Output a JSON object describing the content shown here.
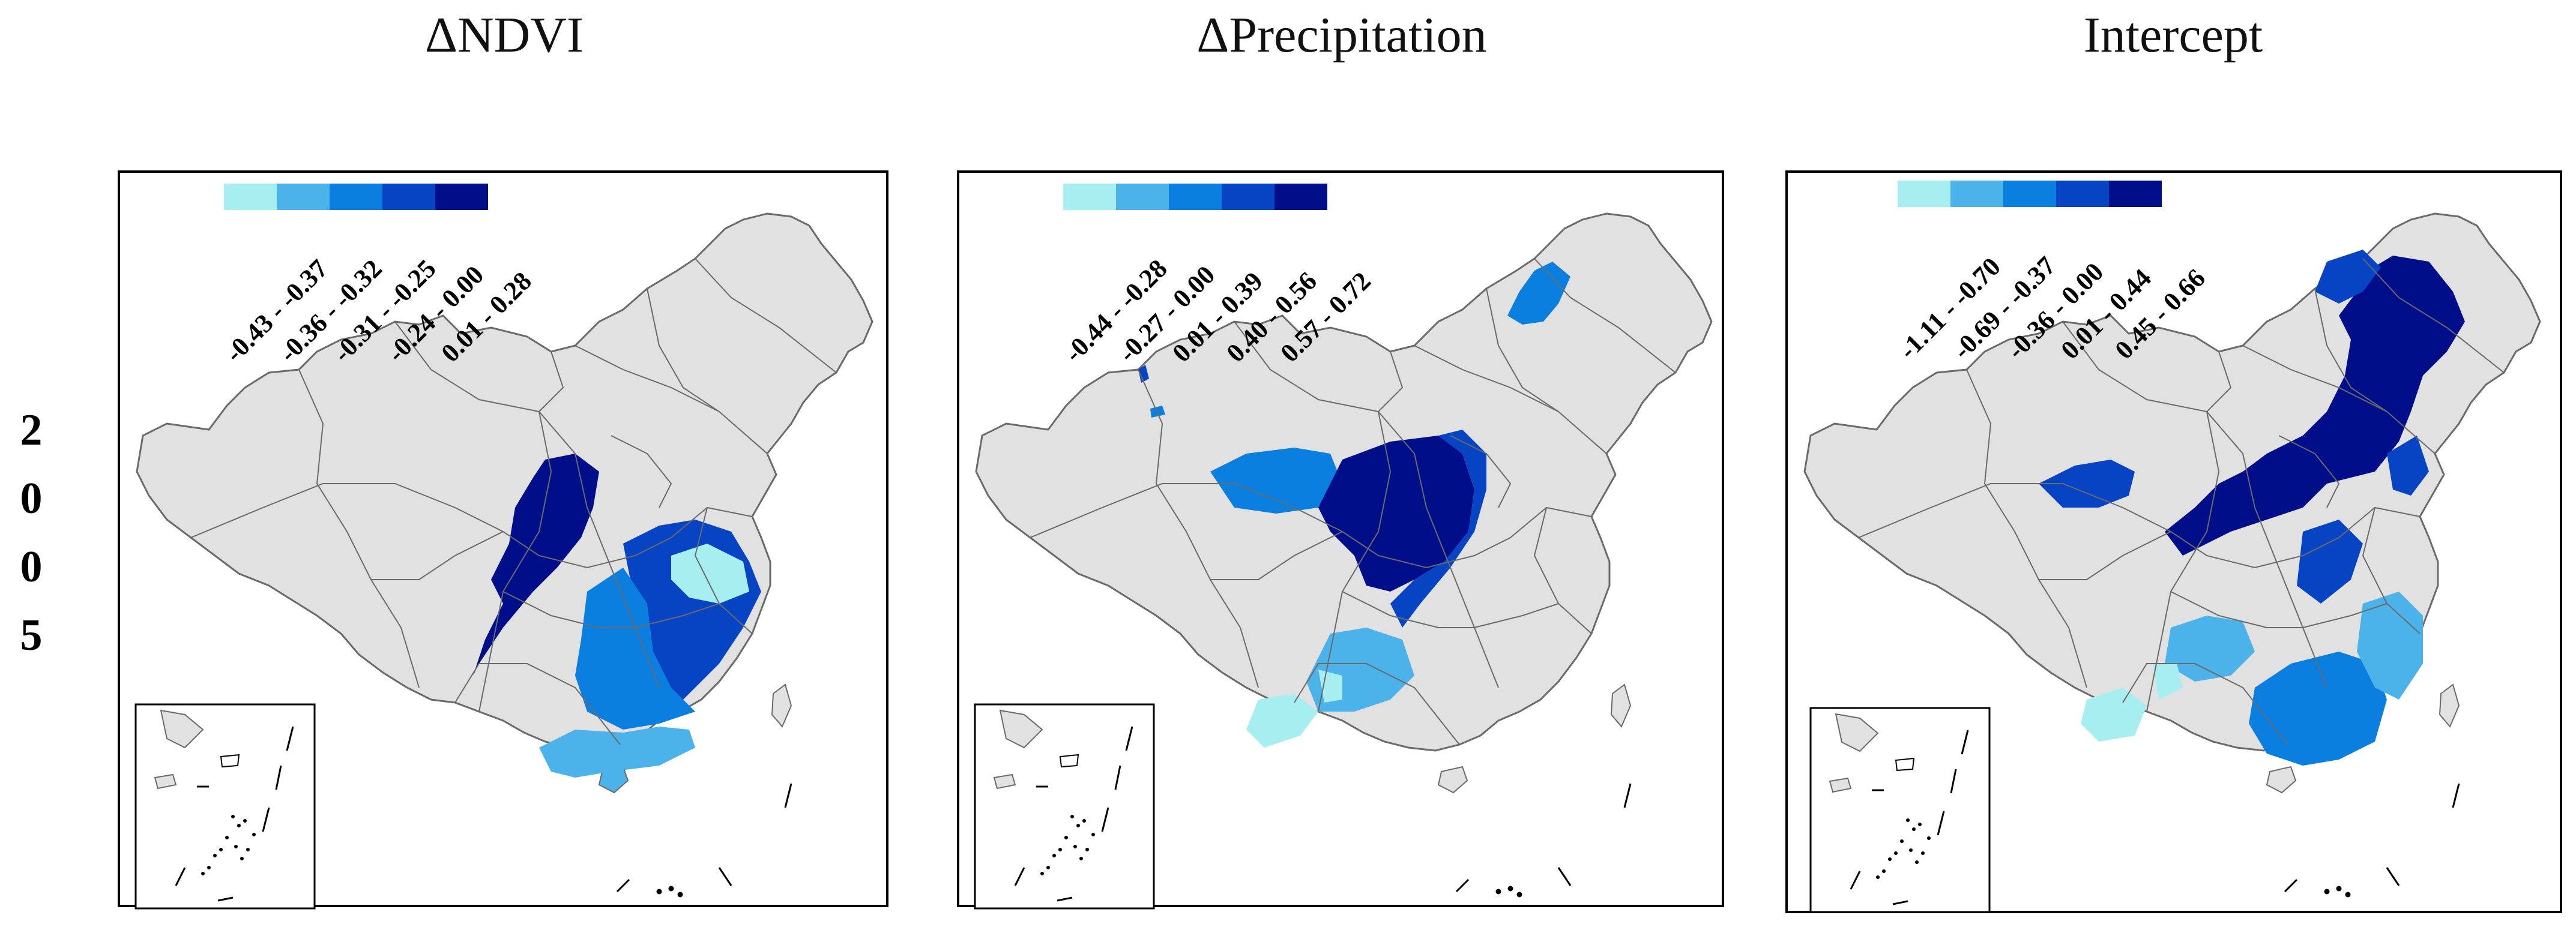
{
  "year_label": [
    "2",
    "0",
    "0",
    "5"
  ],
  "colors": {
    "background_land": "#e1e1e1",
    "border": "#6a6a6a",
    "class1": "#a6eef0",
    "class2": "#4bb2ea",
    "class3": "#0a7fe0",
    "class4": "#0644c4",
    "class5": "#000e8a"
  },
  "panels": [
    {
      "title": "ΔNDVI",
      "legend": [
        "-0.43 - -0.37",
        "-0.36 - -0.32",
        "-0.31 - -0.25",
        "-0.24 - 0.00",
        "0.01 - 0.28"
      ]
    },
    {
      "title": "ΔPrecipitation",
      "legend": [
        "-0.44 - -0.28",
        "-0.27 - 0.00",
        "0.01 - 0.39",
        "0.40 - 0.56",
        "0.57 - 0.72"
      ]
    },
    {
      "title": "Intercept",
      "legend": [
        "-1.11 - -0.70",
        "-0.69 - -0.37",
        "-0.36 - 0.00",
        "0.01 - 0.44",
        "0.45 - 0.66"
      ]
    }
  ]
}
